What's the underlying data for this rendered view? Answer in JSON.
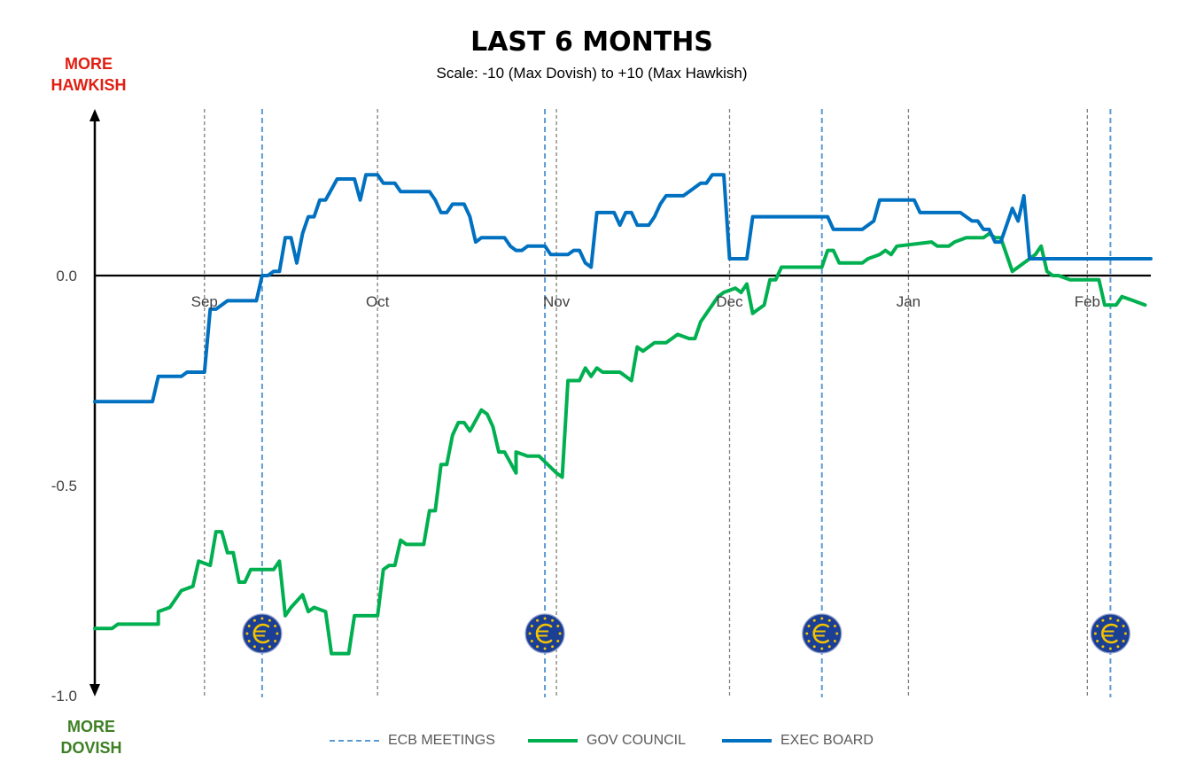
{
  "chart_data": {
    "type": "line",
    "title": "LAST 6 MONTHS",
    "subtitle": "Scale: -10 (Max Dovish)  to +10 (Max Hawkish)",
    "axis_top_label": "MORE\nHAWKISH",
    "axis_bottom_label": "MORE\nDOVISH",
    "ylim": [
      -1.0,
      0.4
    ],
    "y_ticks": [
      {
        "value": 0.0,
        "label": "0.0"
      },
      {
        "value": -0.5,
        "label": "-0.5"
      },
      {
        "value": -1.0,
        "label": "-1.0"
      }
    ],
    "x_domain": [
      "2023-08-13",
      "2024-02-12"
    ],
    "x_ticks": [
      {
        "date": "2023-09-01",
        "label": "Sep"
      },
      {
        "date": "2023-10-01",
        "label": "Oct"
      },
      {
        "date": "2023-11-01",
        "label": "Nov"
      },
      {
        "date": "2023-12-01",
        "label": "Dec"
      },
      {
        "date": "2024-01-01",
        "label": "Jan"
      },
      {
        "date": "2024-02-01",
        "label": "Feb"
      }
    ],
    "ecb_meetings": [
      "2023-09-11",
      "2023-10-30",
      "2023-12-17",
      "2024-02-05"
    ],
    "legend_placement": "bottom",
    "series": [
      {
        "name": "GOV COUNCIL",
        "color": "#00b050",
        "points": [
          [
            "2023-08-13",
            -0.84
          ],
          [
            "2023-08-16",
            -0.84
          ],
          [
            "2023-08-17",
            -0.83
          ],
          [
            "2023-08-20",
            -0.83
          ],
          [
            "2023-08-24",
            -0.83
          ],
          [
            "2023-08-24",
            -0.8
          ],
          [
            "2023-08-26",
            -0.79
          ],
          [
            "2023-08-28",
            -0.75
          ],
          [
            "2023-08-30",
            -0.74
          ],
          [
            "2023-08-31",
            -0.68
          ],
          [
            "2023-09-02",
            -0.69
          ],
          [
            "2023-09-03",
            -0.61
          ],
          [
            "2023-09-04",
            -0.61
          ],
          [
            "2023-09-05",
            -0.66
          ],
          [
            "2023-09-06",
            -0.66
          ],
          [
            "2023-09-07",
            -0.73
          ],
          [
            "2023-09-08",
            -0.73
          ],
          [
            "2023-09-09",
            -0.7
          ],
          [
            "2023-09-13",
            -0.7
          ],
          [
            "2023-09-14",
            -0.68
          ],
          [
            "2023-09-15",
            -0.81
          ],
          [
            "2023-09-16",
            -0.79
          ],
          [
            "2023-09-18",
            -0.76
          ],
          [
            "2023-09-19",
            -0.8
          ],
          [
            "2023-09-20",
            -0.79
          ],
          [
            "2023-09-22",
            -0.8
          ],
          [
            "2023-09-23",
            -0.9
          ],
          [
            "2023-09-26",
            -0.9
          ],
          [
            "2023-09-27",
            -0.81
          ],
          [
            "2023-09-28",
            -0.81
          ],
          [
            "2023-10-01",
            -0.81
          ],
          [
            "2023-10-02",
            -0.7
          ],
          [
            "2023-10-03",
            -0.69
          ],
          [
            "2023-10-04",
            -0.69
          ],
          [
            "2023-10-05",
            -0.63
          ],
          [
            "2023-10-06",
            -0.64
          ],
          [
            "2023-10-09",
            -0.64
          ],
          [
            "2023-10-10",
            -0.56
          ],
          [
            "2023-10-11",
            -0.56
          ],
          [
            "2023-10-12",
            -0.45
          ],
          [
            "2023-10-13",
            -0.45
          ],
          [
            "2023-10-14",
            -0.38
          ],
          [
            "2023-10-15",
            -0.35
          ],
          [
            "2023-10-16",
            -0.35
          ],
          [
            "2023-10-17",
            -0.37
          ],
          [
            "2023-10-19",
            -0.32
          ],
          [
            "2023-10-20",
            -0.33
          ],
          [
            "2023-10-21",
            -0.36
          ],
          [
            "2023-10-22",
            -0.42
          ],
          [
            "2023-10-23",
            -0.42
          ],
          [
            "2023-10-25",
            -0.47
          ],
          [
            "2023-10-25",
            -0.42
          ],
          [
            "2023-10-27",
            -0.43
          ],
          [
            "2023-10-29",
            -0.43
          ],
          [
            "2023-11-01",
            -0.47
          ],
          [
            "2023-11-02",
            -0.48
          ],
          [
            "2023-11-03",
            -0.25
          ],
          [
            "2023-11-05",
            -0.25
          ],
          [
            "2023-11-06",
            -0.22
          ],
          [
            "2023-11-07",
            -0.24
          ],
          [
            "2023-11-08",
            -0.22
          ],
          [
            "2023-11-09",
            -0.23
          ],
          [
            "2023-11-12",
            -0.23
          ],
          [
            "2023-11-14",
            -0.25
          ],
          [
            "2023-11-15",
            -0.17
          ],
          [
            "2023-11-16",
            -0.18
          ],
          [
            "2023-11-18",
            -0.16
          ],
          [
            "2023-11-20",
            -0.16
          ],
          [
            "2023-11-21",
            -0.15
          ],
          [
            "2023-11-22",
            -0.14
          ],
          [
            "2023-11-24",
            -0.15
          ],
          [
            "2023-11-25",
            -0.15
          ],
          [
            "2023-11-26",
            -0.11
          ],
          [
            "2023-11-27",
            -0.09
          ],
          [
            "2023-11-28",
            -0.07
          ],
          [
            "2023-11-29",
            -0.05
          ],
          [
            "2023-11-30",
            -0.04
          ],
          [
            "2023-12-02",
            -0.03
          ],
          [
            "2023-12-03",
            -0.04
          ],
          [
            "2023-12-04",
            -0.02
          ],
          [
            "2023-12-05",
            -0.09
          ],
          [
            "2023-12-06",
            -0.08
          ],
          [
            "2023-12-07",
            -0.07
          ],
          [
            "2023-12-08",
            -0.01
          ],
          [
            "2023-12-09",
            -0.01
          ],
          [
            "2023-12-10",
            0.02
          ],
          [
            "2023-12-11",
            0.02
          ],
          [
            "2023-12-17",
            0.02
          ],
          [
            "2023-12-18",
            0.06
          ],
          [
            "2023-12-19",
            0.06
          ],
          [
            "2023-12-20",
            0.03
          ],
          [
            "2023-12-24",
            0.03
          ],
          [
            "2023-12-25",
            0.04
          ],
          [
            "2023-12-27",
            0.05
          ],
          [
            "2023-12-28",
            0.06
          ],
          [
            "2023-12-29",
            0.05
          ],
          [
            "2023-12-30",
            0.07
          ],
          [
            "2024-01-05",
            0.08
          ],
          [
            "2024-01-06",
            0.07
          ],
          [
            "2024-01-08",
            0.07
          ],
          [
            "2024-01-09",
            0.08
          ],
          [
            "2024-01-11",
            0.09
          ],
          [
            "2024-01-12",
            0.09
          ],
          [
            "2024-01-14",
            0.09
          ],
          [
            "2024-01-15",
            0.1
          ],
          [
            "2024-01-16",
            0.09
          ],
          [
            "2024-01-17",
            0.09
          ],
          [
            "2024-01-19",
            0.01
          ],
          [
            "2024-01-20",
            0.02
          ],
          [
            "2024-01-21",
            0.03
          ],
          [
            "2024-01-22",
            0.04
          ],
          [
            "2024-01-23",
            0.05
          ],
          [
            "2024-01-24",
            0.07
          ],
          [
            "2024-01-25",
            0.01
          ],
          [
            "2024-01-26",
            0.0
          ],
          [
            "2024-01-27",
            0.0
          ],
          [
            "2024-01-29",
            -0.01
          ],
          [
            "2024-02-03",
            -0.01
          ],
          [
            "2024-02-04",
            -0.07
          ],
          [
            "2024-02-06",
            -0.07
          ],
          [
            "2024-02-07",
            -0.05
          ],
          [
            "2024-02-09",
            -0.06
          ],
          [
            "2024-02-11",
            -0.07
          ]
        ]
      },
      {
        "name": "EXEC BOARD",
        "color": "#0070c0",
        "points": [
          [
            "2023-08-13",
            -0.3
          ],
          [
            "2023-08-23",
            -0.3
          ],
          [
            "2023-08-24",
            -0.24
          ],
          [
            "2023-08-28",
            -0.24
          ],
          [
            "2023-08-29",
            -0.23
          ],
          [
            "2023-09-01",
            -0.23
          ],
          [
            "2023-09-02",
            -0.08
          ],
          [
            "2023-09-03",
            -0.08
          ],
          [
            "2023-09-05",
            -0.06
          ],
          [
            "2023-09-10",
            -0.06
          ],
          [
            "2023-09-11",
            0.0
          ],
          [
            "2023-09-12",
            0.0
          ],
          [
            "2023-09-13",
            0.01
          ],
          [
            "2023-09-14",
            0.01
          ],
          [
            "2023-09-15",
            0.09
          ],
          [
            "2023-09-16",
            0.09
          ],
          [
            "2023-09-17",
            0.03
          ],
          [
            "2023-09-18",
            0.1
          ],
          [
            "2023-09-19",
            0.14
          ],
          [
            "2023-09-20",
            0.14
          ],
          [
            "2023-09-21",
            0.18
          ],
          [
            "2023-09-22",
            0.18
          ],
          [
            "2023-09-24",
            0.23
          ],
          [
            "2023-09-25",
            0.23
          ],
          [
            "2023-09-27",
            0.23
          ],
          [
            "2023-09-28",
            0.18
          ],
          [
            "2023-09-29",
            0.24
          ],
          [
            "2023-10-01",
            0.24
          ],
          [
            "2023-10-02",
            0.22
          ],
          [
            "2023-10-04",
            0.22
          ],
          [
            "2023-10-05",
            0.2
          ],
          [
            "2023-10-10",
            0.2
          ],
          [
            "2023-10-11",
            0.18
          ],
          [
            "2023-10-12",
            0.15
          ],
          [
            "2023-10-13",
            0.15
          ],
          [
            "2023-10-14",
            0.17
          ],
          [
            "2023-10-16",
            0.17
          ],
          [
            "2023-10-17",
            0.14
          ],
          [
            "2023-10-18",
            0.08
          ],
          [
            "2023-10-19",
            0.09
          ],
          [
            "2023-10-23",
            0.09
          ],
          [
            "2023-10-24",
            0.07
          ],
          [
            "2023-10-25",
            0.06
          ],
          [
            "2023-10-26",
            0.06
          ],
          [
            "2023-10-27",
            0.07
          ],
          [
            "2023-10-30",
            0.07
          ],
          [
            "2023-10-31",
            0.05
          ],
          [
            "2023-11-02",
            0.05
          ],
          [
            "2023-11-03",
            0.05
          ],
          [
            "2023-11-04",
            0.06
          ],
          [
            "2023-11-05",
            0.06
          ],
          [
            "2023-11-06",
            0.03
          ],
          [
            "2023-11-07",
            0.02
          ],
          [
            "2023-11-08",
            0.15
          ],
          [
            "2023-11-09",
            0.15
          ],
          [
            "2023-11-11",
            0.15
          ],
          [
            "2023-11-12",
            0.12
          ],
          [
            "2023-11-13",
            0.15
          ],
          [
            "2023-11-14",
            0.15
          ],
          [
            "2023-11-15",
            0.12
          ],
          [
            "2023-11-16",
            0.12
          ],
          [
            "2023-11-17",
            0.12
          ],
          [
            "2023-11-18",
            0.14
          ],
          [
            "2023-11-19",
            0.17
          ],
          [
            "2023-11-20",
            0.19
          ],
          [
            "2023-11-22",
            0.19
          ],
          [
            "2023-11-23",
            0.19
          ],
          [
            "2023-11-24",
            0.2
          ],
          [
            "2023-11-26",
            0.22
          ],
          [
            "2023-11-27",
            0.22
          ],
          [
            "2023-11-28",
            0.24
          ],
          [
            "2023-11-29",
            0.24
          ],
          [
            "2023-11-30",
            0.24
          ],
          [
            "2023-12-01",
            0.04
          ],
          [
            "2023-12-04",
            0.04
          ],
          [
            "2023-12-05",
            0.14
          ],
          [
            "2023-12-09",
            0.14
          ],
          [
            "2023-12-15",
            0.14
          ],
          [
            "2023-12-16",
            0.14
          ],
          [
            "2023-12-18",
            0.14
          ],
          [
            "2023-12-19",
            0.11
          ],
          [
            "2023-12-24",
            0.11
          ],
          [
            "2023-12-25",
            0.12
          ],
          [
            "2023-12-26",
            0.13
          ],
          [
            "2023-12-27",
            0.18
          ],
          [
            "2024-01-02",
            0.18
          ],
          [
            "2024-01-03",
            0.15
          ],
          [
            "2024-01-10",
            0.15
          ],
          [
            "2024-01-11",
            0.14
          ],
          [
            "2024-01-12",
            0.13
          ],
          [
            "2024-01-13",
            0.13
          ],
          [
            "2024-01-14",
            0.11
          ],
          [
            "2024-01-15",
            0.11
          ],
          [
            "2024-01-16",
            0.08
          ],
          [
            "2024-01-17",
            0.08
          ],
          [
            "2024-01-18",
            0.12
          ],
          [
            "2024-01-19",
            0.16
          ],
          [
            "2024-01-20",
            0.13
          ],
          [
            "2024-01-21",
            0.19
          ],
          [
            "2024-01-22",
            0.04
          ],
          [
            "2024-02-02",
            0.04
          ],
          [
            "2024-02-03",
            0.04
          ],
          [
            "2024-02-12",
            0.04
          ]
        ]
      }
    ],
    "legend": [
      {
        "name": "ECB MEETINGS",
        "style": "dashed",
        "color": "#5b9bd5"
      },
      {
        "name": "GOV COUNCIL",
        "style": "solid",
        "color": "#00b050"
      },
      {
        "name": "EXEC BOARD",
        "style": "solid",
        "color": "#0070c0"
      }
    ],
    "colors": {
      "hawkish_label": "#e01e12",
      "dovish_label": "#3d7f24",
      "ecb_marker_fill": "#1b3f95",
      "ecb_marker_star": "#f3c300",
      "month_gridline": "#7f7f7f",
      "meeting_line": "#5b9bd5"
    },
    "ecb_marker_icon": "euro-coin-icon"
  }
}
